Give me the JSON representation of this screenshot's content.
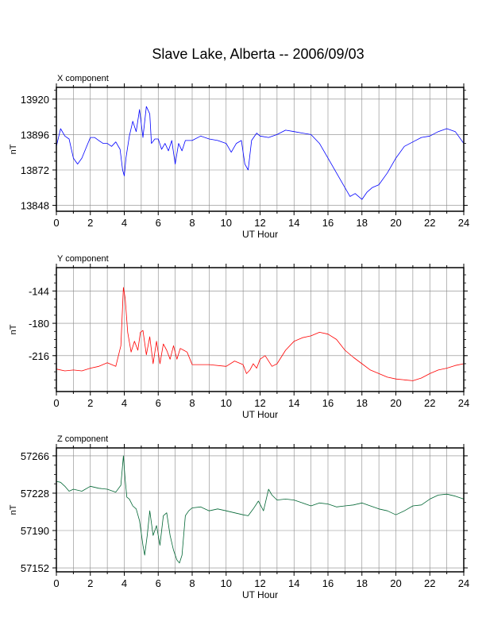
{
  "title": "Slave Lake, Alberta -- 2006/09/03",
  "chart_data": [
    {
      "type": "line",
      "panel_label": "X component",
      "xlabel": "UT Hour",
      "ylabel": "nT",
      "xlim": [
        0,
        24
      ],
      "ylim": [
        13844,
        13928
      ],
      "xticks": [
        0,
        2,
        4,
        6,
        8,
        10,
        12,
        14,
        16,
        18,
        20,
        22,
        24
      ],
      "yticks": [
        13848,
        13872,
        13896,
        13920
      ],
      "grid": true,
      "color": "#0000ff",
      "x": [
        0,
        0.25,
        0.5,
        0.75,
        1,
        1.25,
        1.5,
        1.75,
        2,
        2.25,
        2.5,
        2.75,
        3,
        3.25,
        3.5,
        3.75,
        3.9,
        4,
        4.1,
        4.3,
        4.5,
        4.7,
        4.9,
        5.1,
        5.3,
        5.5,
        5.6,
        5.8,
        6,
        6.2,
        6.4,
        6.6,
        6.8,
        7,
        7.2,
        7.4,
        7.6,
        7.8,
        8,
        8.5,
        9,
        9.5,
        10,
        10.3,
        10.6,
        10.9,
        11.1,
        11.3,
        11.5,
        11.8,
        12,
        12.5,
        13,
        13.5,
        14,
        14.5,
        15,
        15.5,
        16,
        16.5,
        17,
        17.3,
        17.6,
        18,
        18.3,
        18.6,
        19,
        19.5,
        20,
        20.5,
        21,
        21.5,
        22,
        22.5,
        23,
        23.5,
        24
      ],
      "y": [
        13888,
        13900,
        13895,
        13893,
        13880,
        13876,
        13880,
        13887,
        13894,
        13894,
        13892,
        13890,
        13890,
        13888,
        13891,
        13886,
        13872,
        13868,
        13880,
        13895,
        13905,
        13898,
        13913,
        13894,
        13915,
        13910,
        13890,
        13893,
        13893,
        13886,
        13890,
        13885,
        13892,
        13876,
        13890,
        13885,
        13892,
        13892,
        13892,
        13895,
        13893,
        13892,
        13890,
        13884,
        13890,
        13892,
        13876,
        13872,
        13892,
        13897,
        13895,
        13894,
        13896,
        13899,
        13898,
        13897,
        13896,
        13890,
        13880,
        13870,
        13860,
        13854,
        13856,
        13852,
        13857,
        13860,
        13862,
        13870,
        13880,
        13888,
        13891,
        13894,
        13895,
        13898,
        13900,
        13898,
        13890
      ]
    },
    {
      "type": "line",
      "panel_label": "Y component",
      "xlabel": "UT Hour",
      "ylabel": "nT",
      "xlim": [
        0,
        24
      ],
      "ylim": [
        -256,
        -118
      ],
      "xticks": [
        0,
        2,
        4,
        6,
        8,
        10,
        12,
        14,
        16,
        18,
        20,
        22,
        24
      ],
      "yticks": [
        -144,
        -180,
        -216
      ],
      "grid": true,
      "color": "#ff0000",
      "x": [
        0,
        0.5,
        1,
        1.5,
        2,
        2.5,
        3,
        3.5,
        3.8,
        3.95,
        4.05,
        4.2,
        4.4,
        4.6,
        4.8,
        4.95,
        5.1,
        5.3,
        5.5,
        5.7,
        5.9,
        6.1,
        6.3,
        6.5,
        6.7,
        6.9,
        7.1,
        7.3,
        7.5,
        7.7,
        8,
        9,
        10,
        10.5,
        11,
        11.2,
        11.4,
        11.6,
        11.8,
        12,
        12.3,
        12.7,
        13,
        13.5,
        14,
        14.5,
        15,
        15.5,
        16,
        16.5,
        17,
        17.5,
        18,
        18.5,
        19,
        19.5,
        20,
        20.5,
        21,
        21.5,
        22,
        22.5,
        23,
        23.5,
        24
      ],
      "y": [
        -231,
        -233,
        -232,
        -233,
        -230,
        -228,
        -224,
        -228,
        -205,
        -140,
        -152,
        -190,
        -212,
        -200,
        -210,
        -190,
        -188,
        -215,
        -195,
        -225,
        -200,
        -225,
        -203,
        -210,
        -220,
        -205,
        -220,
        -208,
        -210,
        -212,
        -226,
        -226,
        -228,
        -222,
        -226,
        -236,
        -232,
        -225,
        -230,
        -220,
        -216,
        -228,
        -225,
        -210,
        -200,
        -196,
        -194,
        -190,
        -192,
        -198,
        -210,
        -218,
        -225,
        -232,
        -236,
        -240,
        -242,
        -243,
        -244,
        -241,
        -236,
        -232,
        -230,
        -227,
        -225
      ]
    },
    {
      "type": "line",
      "panel_label": "Z component",
      "xlabel": "UT Hour",
      "ylabel": "nT",
      "xlim": [
        0,
        24
      ],
      "ylim": [
        57148,
        57274
      ],
      "xticks": [
        0,
        2,
        4,
        6,
        8,
        10,
        12,
        14,
        16,
        18,
        20,
        22,
        24
      ],
      "yticks": [
        57152,
        57190,
        57228,
        57266
      ],
      "grid": true,
      "color": "#006633",
      "x": [
        0,
        0.25,
        0.5,
        0.75,
        1,
        1.5,
        2,
        2.5,
        3,
        3.5,
        3.8,
        3.95,
        4.05,
        4.15,
        4.3,
        4.5,
        4.7,
        4.9,
        5.1,
        5.2,
        5.35,
        5.5,
        5.7,
        5.9,
        6.1,
        6.3,
        6.5,
        6.7,
        6.9,
        7.1,
        7.25,
        7.4,
        7.6,
        7.8,
        8,
        8.5,
        9,
        9.5,
        10,
        10.5,
        11,
        11.3,
        11.6,
        11.9,
        12.2,
        12.5,
        12.7,
        13,
        13.5,
        14,
        14.5,
        15,
        15.5,
        16,
        16.5,
        17,
        17.5,
        18,
        18.5,
        19,
        19.5,
        20,
        20.5,
        21,
        21.5,
        22,
        22.5,
        23,
        23.5,
        24
      ],
      "y": [
        57240,
        57239,
        57235,
        57230,
        57232,
        57230,
        57235,
        57233,
        57232,
        57229,
        57236,
        57266,
        57242,
        57224,
        57222,
        57215,
        57212,
        57200,
        57175,
        57165,
        57185,
        57210,
        57185,
        57195,
        57175,
        57205,
        57208,
        57185,
        57170,
        57160,
        57157,
        57165,
        57205,
        57210,
        57213,
        57214,
        57210,
        57212,
        57210,
        57208,
        57206,
        57205,
        57212,
        57220,
        57210,
        57232,
        57226,
        57221,
        57222,
        57221,
        57218,
        57215,
        57218,
        57217,
        57214,
        57215,
        57216,
        57218,
        57215,
        57212,
        57210,
        57206,
        57210,
        57215,
        57216,
        57222,
        57226,
        57227,
        57225,
        57222
      ]
    }
  ]
}
